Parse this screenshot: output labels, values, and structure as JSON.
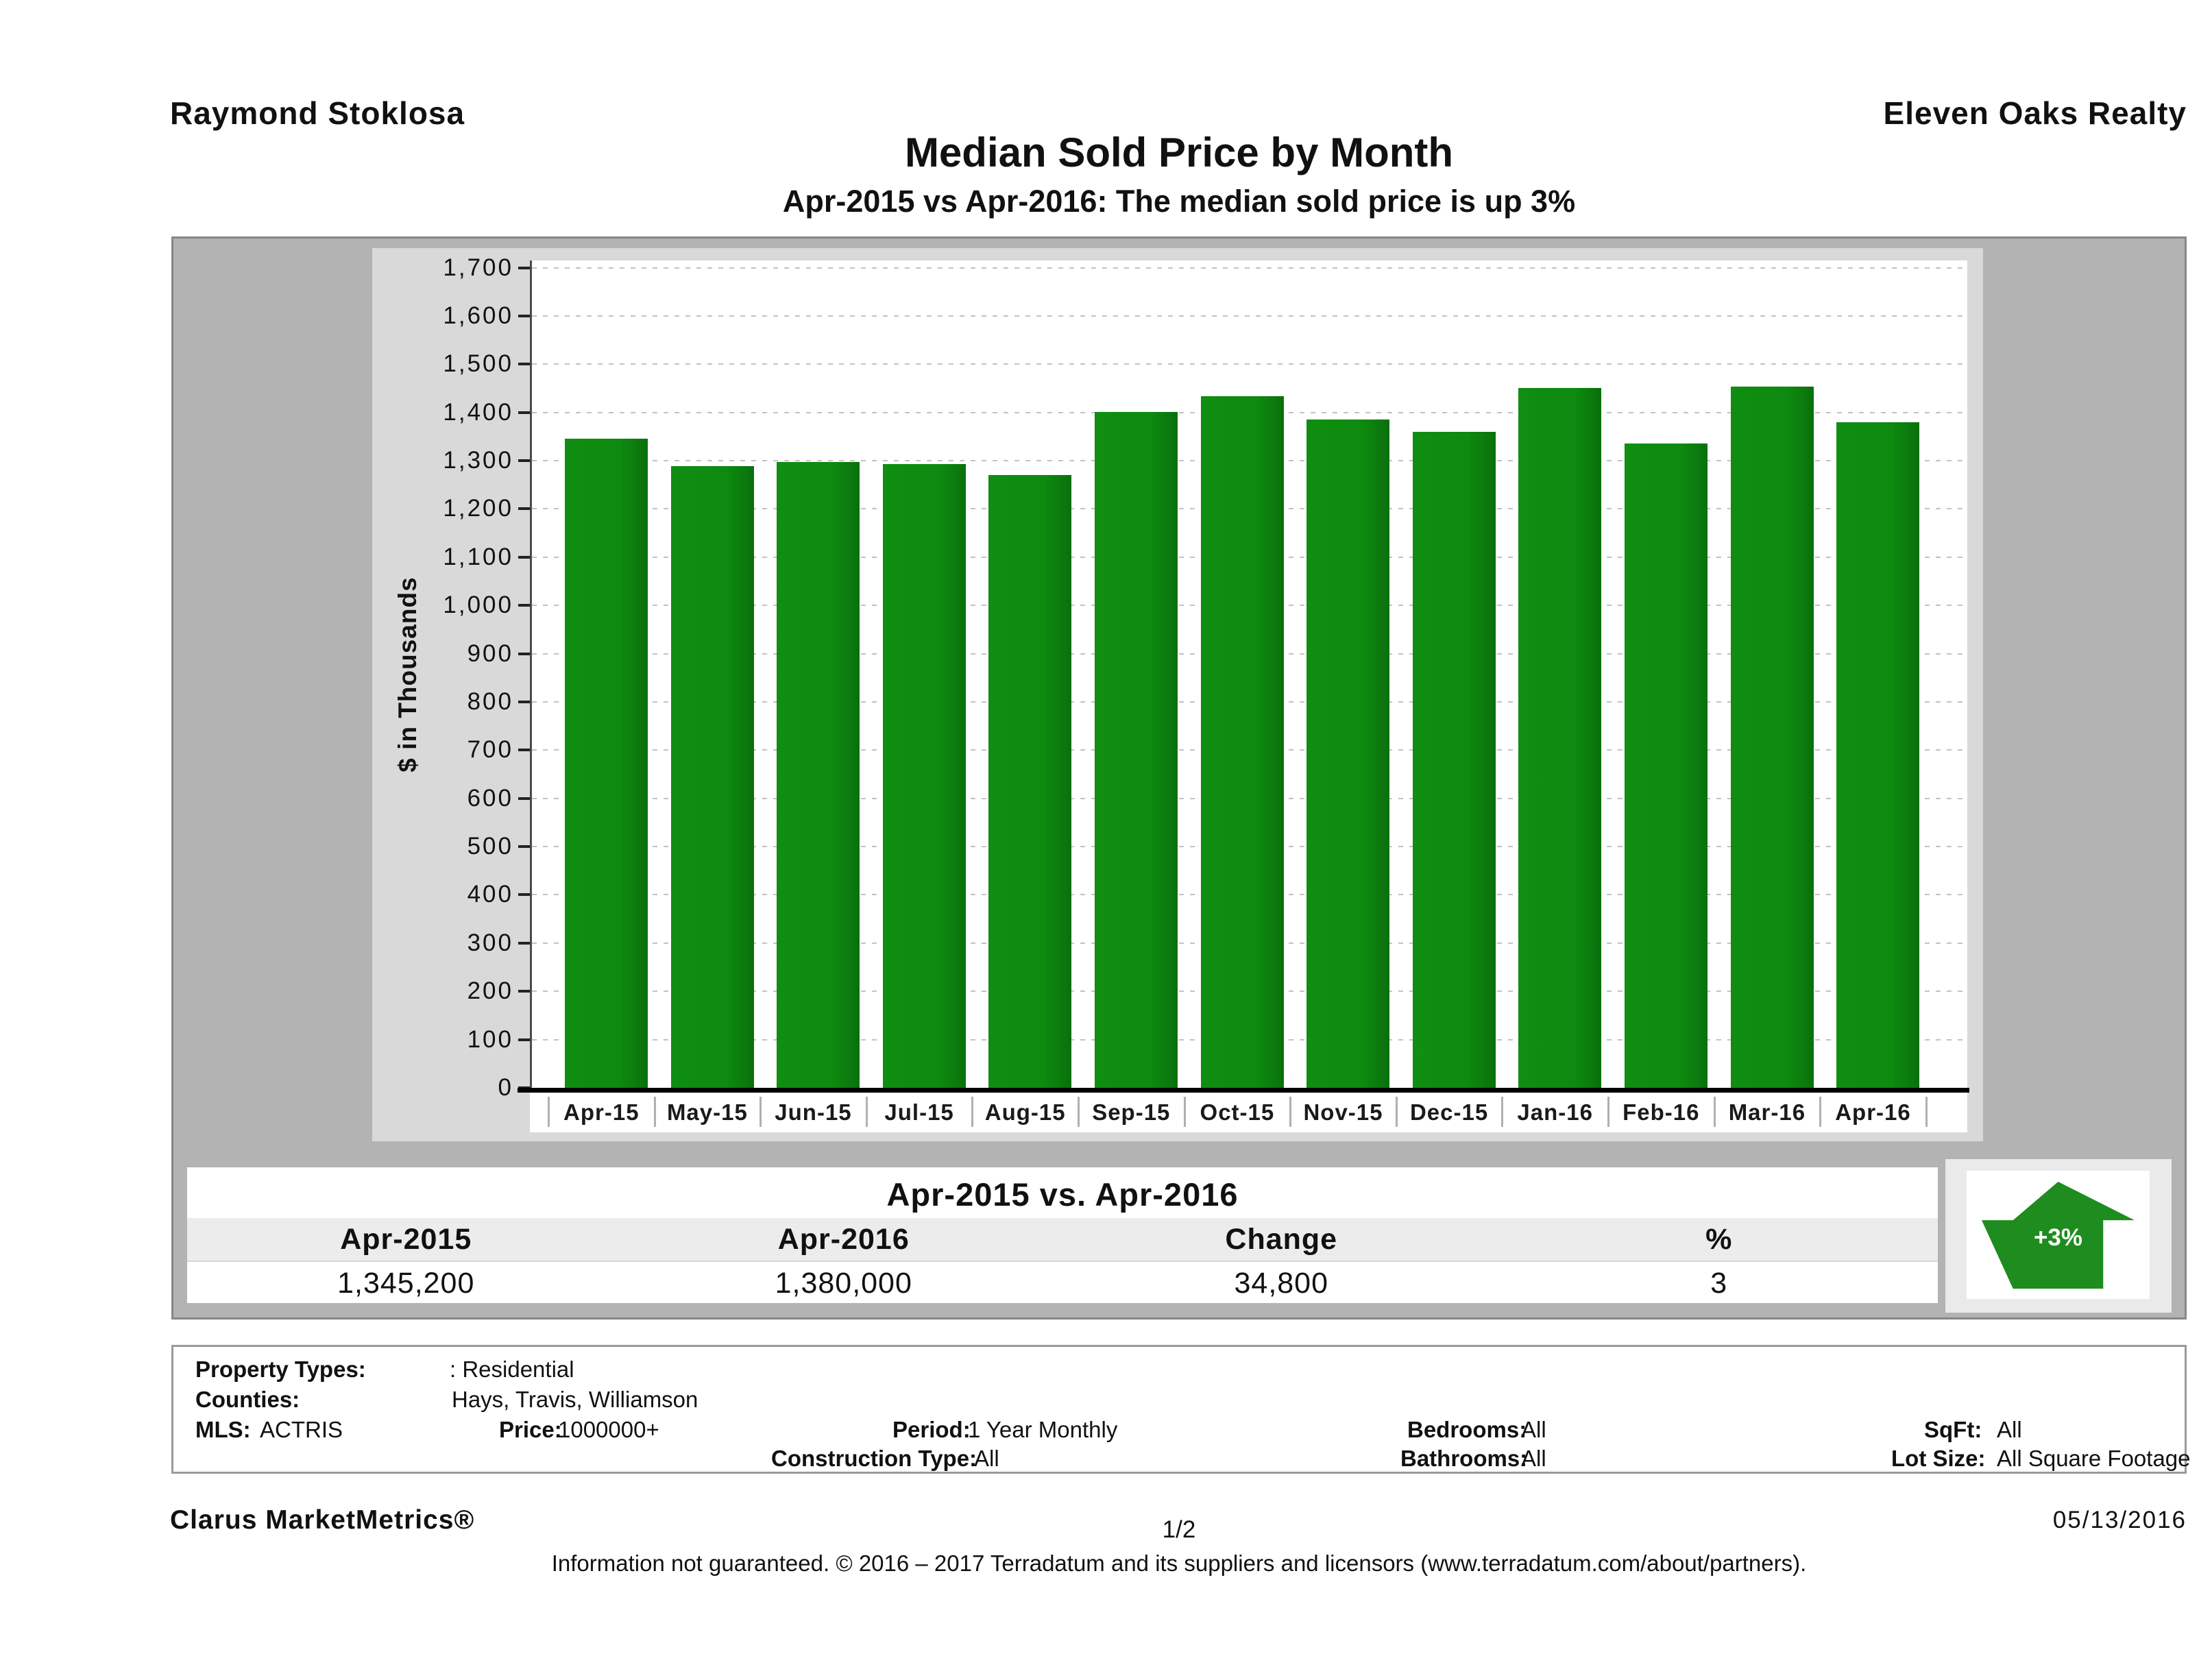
{
  "header": {
    "agent": "Raymond Stoklosa",
    "company": "Eleven Oaks Realty",
    "title": "Median Sold Price by Month",
    "subtitle": "Apr-2015 vs Apr-2016: The median sold price is up 3%"
  },
  "chart_data": {
    "type": "bar",
    "title": "Median Sold Price by Month",
    "categories": [
      "Apr-15",
      "May-15",
      "Jun-15",
      "Jul-15",
      "Aug-15",
      "Sep-15",
      "Oct-15",
      "Nov-15",
      "Dec-15",
      "Jan-16",
      "Feb-16",
      "Mar-16",
      "Apr-16"
    ],
    "values": [
      1345.2,
      1289,
      1297,
      1293,
      1270,
      1401,
      1433,
      1386,
      1360,
      1451,
      1336,
      1453,
      1380
    ],
    "xlabel": "",
    "ylabel": "$ in Thousands",
    "ylim": [
      0,
      1700
    ],
    "ytick_step": 100,
    "grid": "dotted-horizontal",
    "legend": "none",
    "bar_color": "#0d8a0f"
  },
  "summary": {
    "title": "Apr-2015 vs. Apr-2016",
    "columns": [
      "Apr-2015",
      "Apr-2016",
      "Change",
      "%"
    ],
    "values": [
      "1,345,200",
      "1,380,000",
      "34,800",
      "3"
    ],
    "badge": "+3%"
  },
  "criteria": {
    "property_types_label": "Property Types:",
    "property_types_value": ": Residential",
    "counties_label": "Counties:",
    "counties_value": "Hays, Travis, Williamson",
    "mls_label": "MLS:",
    "mls_value": "ACTRIS",
    "price_label": "Price:",
    "price_value": "1000000+",
    "period_label": "Period:",
    "period_value": "1 Year Monthly",
    "construction_label": "Construction Type:",
    "construction_value": "All",
    "bedrooms_label": "Bedrooms:",
    "bedrooms_value": "All",
    "bathrooms_label": "Bathrooms:",
    "bathrooms_value": "All",
    "sqft_label": "SqFt:",
    "sqft_value": "All",
    "lotsize_label": "Lot Size:",
    "lotsize_value": "All Square Footage"
  },
  "footer": {
    "product": "Clarus MarketMetrics®",
    "page": "1/2",
    "date": "05/13/2016",
    "disclaimer": "Information not guaranteed. © 2016 – 2017 Terradatum and its suppliers and licensors (www.terradatum.com/about/partners)."
  },
  "colors": {
    "bar_green": "#0d8a0f",
    "arrow_green": "#1e8c1e",
    "panel_gray": "#b3b3b3",
    "chart_bg_gray": "#d9d9d9",
    "table_header_gray": "#ececec"
  }
}
